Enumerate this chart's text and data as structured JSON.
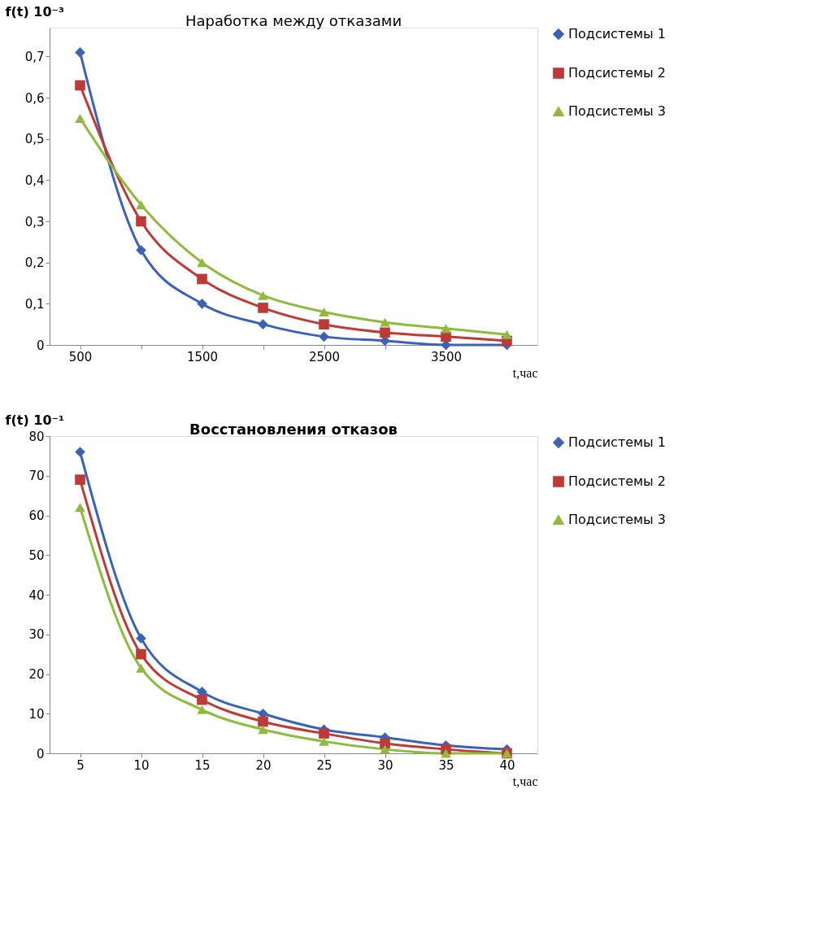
{
  "chart_data": [
    {
      "type": "line",
      "title": "Наработка между отказами",
      "xlabel": "t,час",
      "ylabel": "f(t) 10⁻³",
      "categories": [
        "500",
        null,
        "1500",
        null,
        "2500",
        null,
        "3500",
        null
      ],
      "series": [
        {
          "name": "Подсистемы 1",
          "color": "#3a63b8",
          "marker": "diamond",
          "values": [
            0.71,
            0.23,
            0.1,
            0.05,
            0.02,
            0.01,
            0.0,
            0.0
          ]
        },
        {
          "name": "Подсистемы 2",
          "color": "#be3a36",
          "marker": "square",
          "values": [
            0.63,
            0.3,
            0.16,
            0.09,
            0.05,
            0.03,
            0.02,
            0.01
          ]
        },
        {
          "name": "Подсистемы 3",
          "color": "#8fbb3c",
          "marker": "triangle",
          "values": [
            0.55,
            0.34,
            0.2,
            0.12,
            0.08,
            0.055,
            0.04,
            0.025
          ]
        }
      ],
      "ylim": [
        0,
        0.77
      ],
      "yticks": [
        0,
        {
          "value": 0.1,
          "label": "0,1"
        },
        {
          "value": 0.2,
          "label": "0,2"
        },
        {
          "value": 0.3,
          "label": "0,3"
        },
        {
          "value": 0.4,
          "label": "0,4"
        },
        {
          "value": 0.5,
          "label": "0,5"
        },
        {
          "value": 0.6,
          "label": "0,6"
        },
        {
          "value": 0.7,
          "label": "0,7"
        }
      ],
      "grid": false,
      "legend": "right",
      "line_style": "solid"
    },
    {
      "type": "line",
      "title": "Восстановления отказов",
      "xlabel": "t,час",
      "ylabel": "f(t) 10⁻¹",
      "categories": [
        "5",
        "10",
        "15",
        "20",
        "25",
        "30",
        "35",
        "40"
      ],
      "series": [
        {
          "name": "Подсистемы 1",
          "color": "#3a63b8",
          "marker": "diamond",
          "values": [
            76,
            29,
            15.5,
            10,
            6,
            4,
            2,
            1
          ]
        },
        {
          "name": "Подсистемы 2",
          "color": "#be3a36",
          "marker": "square",
          "values": [
            69,
            25,
            13.5,
            8,
            5,
            2.5,
            1,
            0
          ]
        },
        {
          "name": "Подсистемы 3",
          "color": "#8fbb3c",
          "marker": "triangle",
          "values": [
            62,
            21.5,
            11,
            6,
            3,
            1,
            0,
            0
          ]
        }
      ],
      "ylim": [
        0,
        80
      ],
      "yticks": [
        0,
        10,
        20,
        30,
        40,
        50,
        60,
        70,
        80
      ],
      "grid": false,
      "legend": "right",
      "line_style": "solid"
    }
  ]
}
